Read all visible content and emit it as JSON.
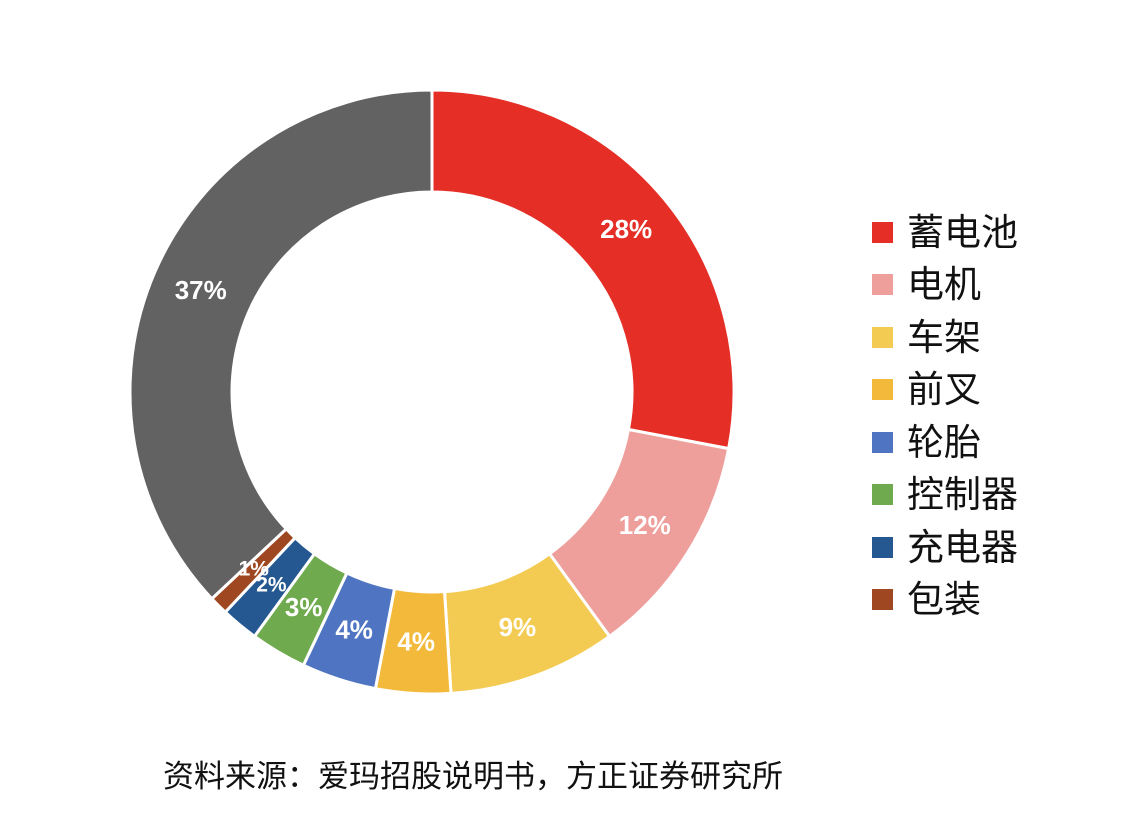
{
  "chart_data": {
    "type": "pie",
    "variant": "donut",
    "categories": [
      "蓄电池",
      "电机",
      "车架",
      "前叉",
      "轮胎",
      "控制器",
      "充电器",
      "包装",
      ""
    ],
    "values": [
      28,
      12,
      9,
      4,
      4,
      3,
      2,
      1,
      37
    ],
    "labels": [
      "28%",
      "12%",
      "9%",
      "4%",
      "4%",
      "3%",
      "2%",
      "1%",
      "37%"
    ],
    "colors": [
      "#e52e26",
      "#ee9f9b",
      "#f4cb52",
      "#f2b93b",
      "#4f74c2",
      "#6faa4e",
      "#255891",
      "#9f4720",
      "#626262"
    ],
    "legend_position": "right",
    "source": "资料来源：爱玛招股说明书，方正证券研究所"
  }
}
